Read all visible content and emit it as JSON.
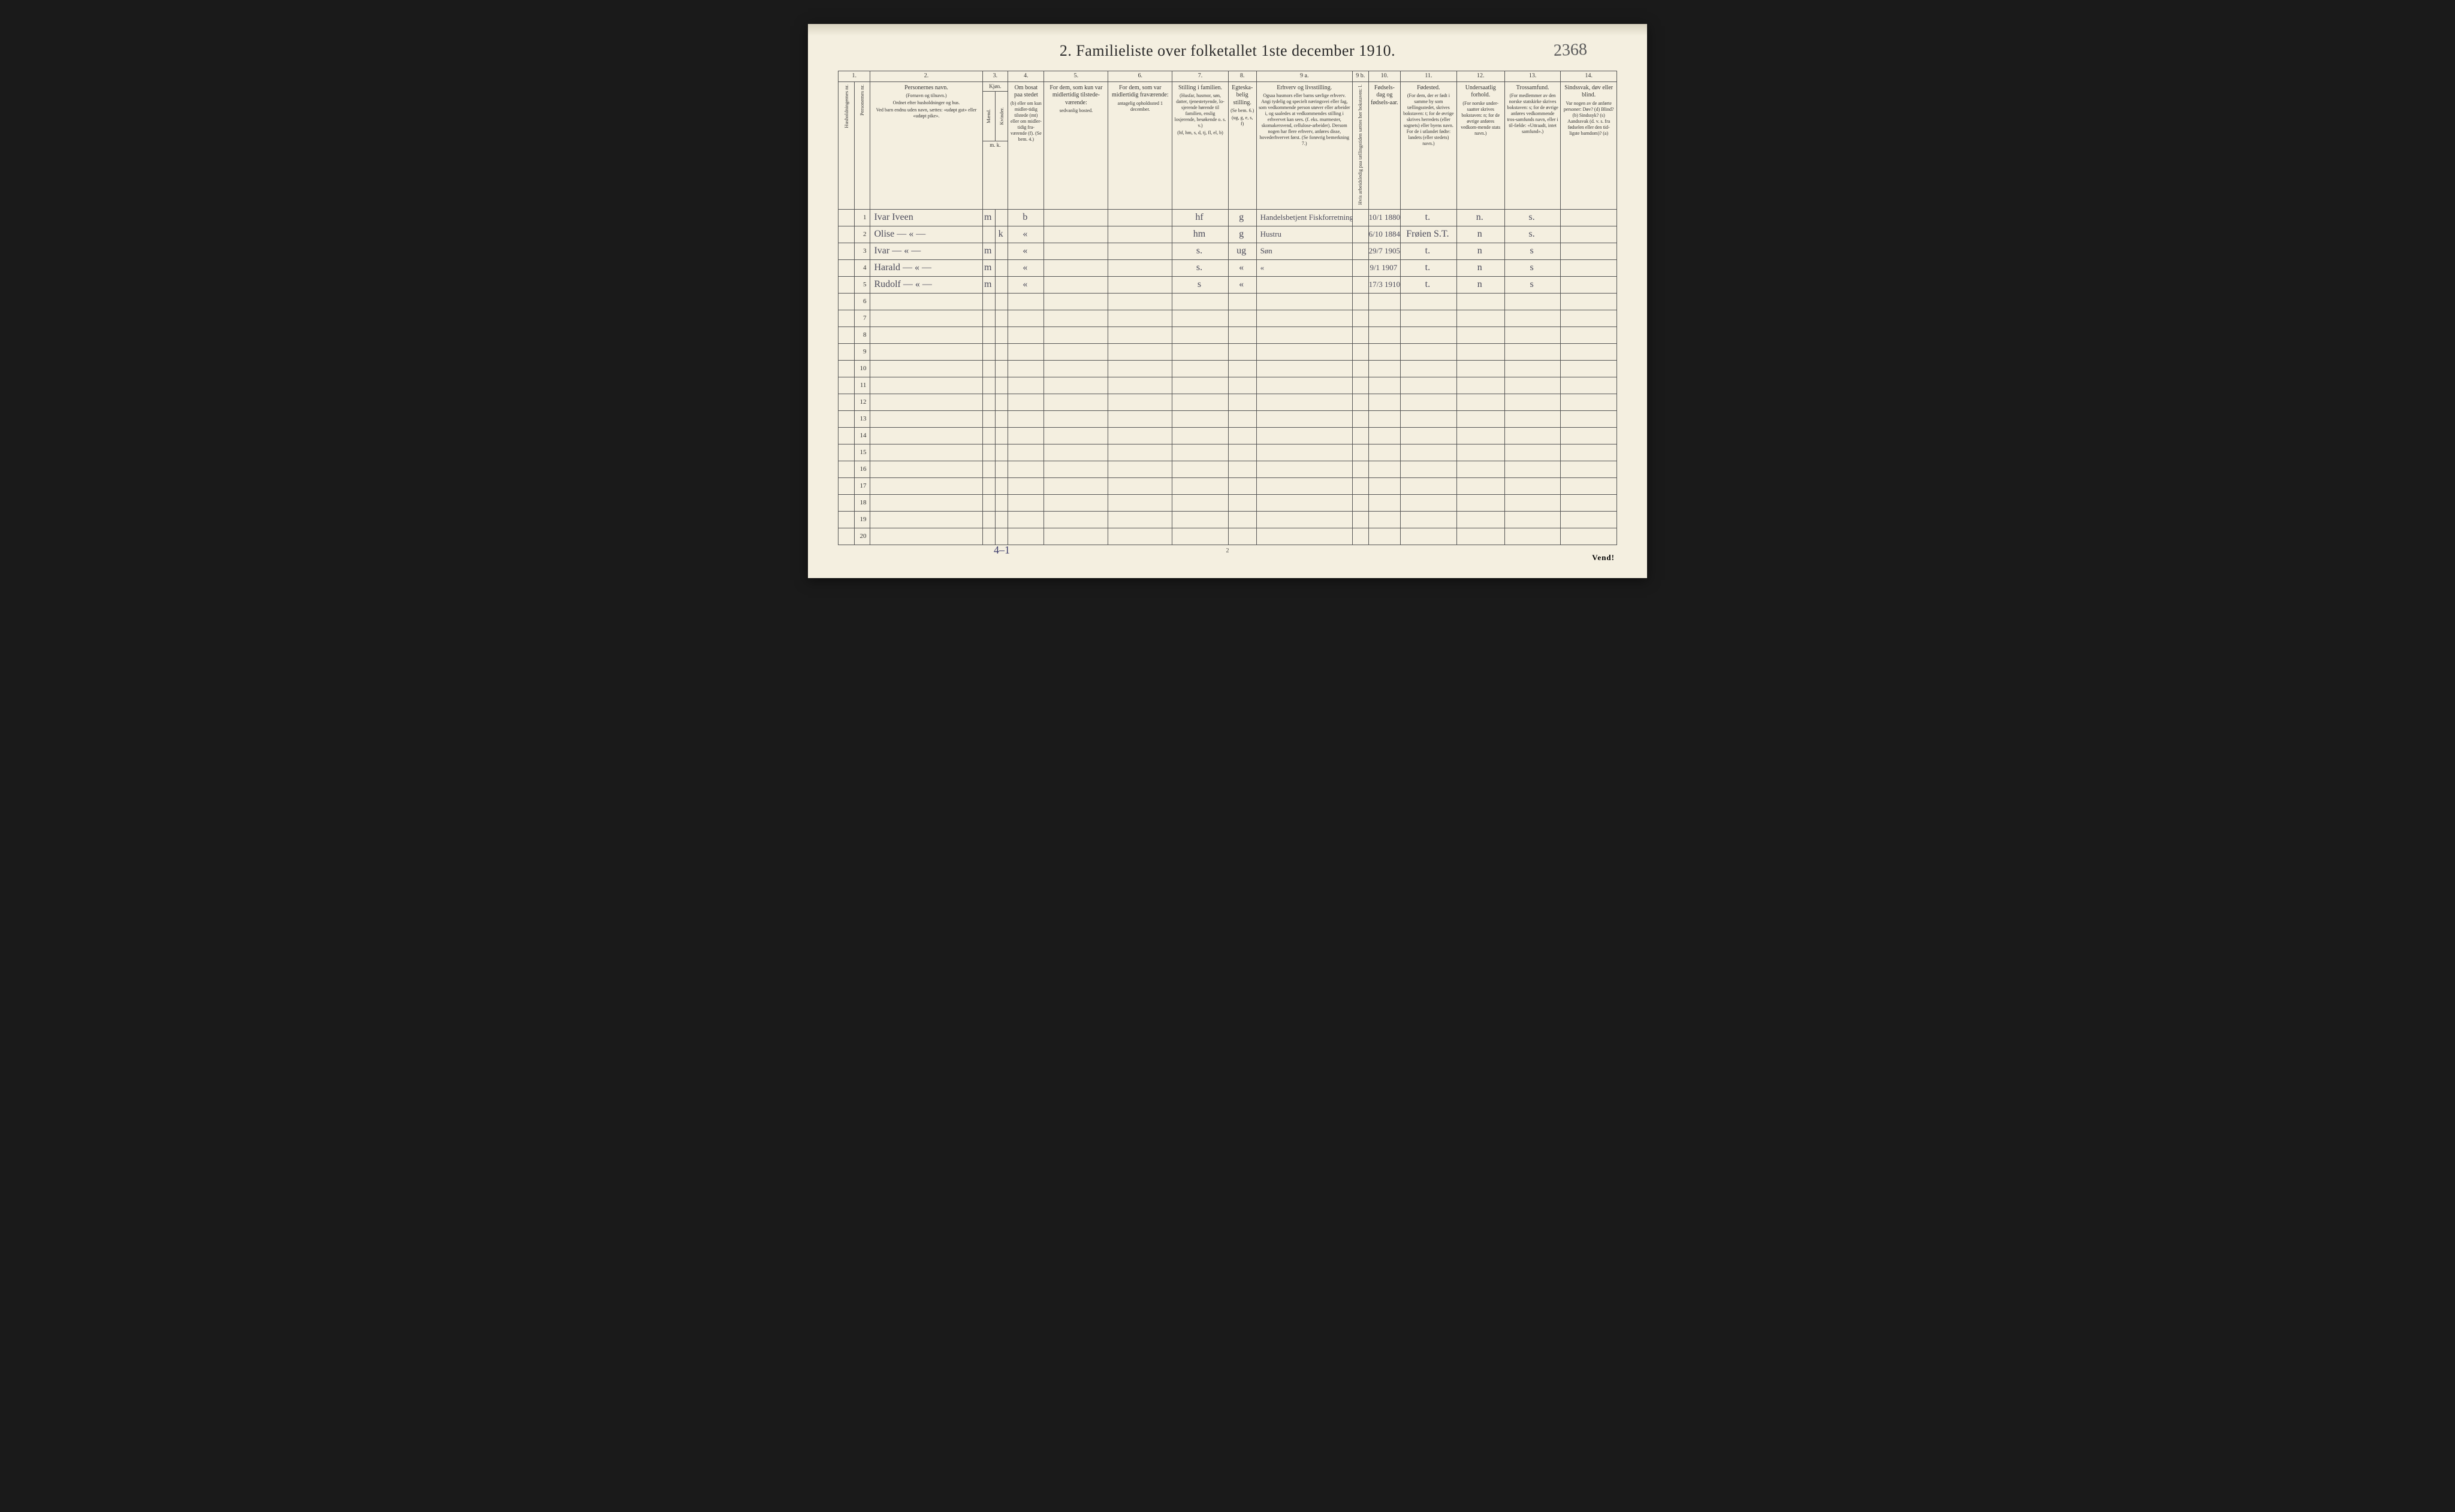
{
  "document": {
    "title": "2.  Familieliste over folketallet 1ste december 1910.",
    "topright_handwritten": "2368",
    "page_number_bottom": "2",
    "footer_right": "Vend!",
    "tally_note": "4–1",
    "background_color": "#f4efe0",
    "border_color": "#555555",
    "handwriting_color": "#4a4a5a",
    "print_color": "#2a2a2a"
  },
  "column_numbers": [
    "1.",
    "2.",
    "3.",
    "4.",
    "5.",
    "6.",
    "7.",
    "8.",
    "9 a.",
    "9 b.",
    "10.",
    "11.",
    "12.",
    "13.",
    "14."
  ],
  "headers": {
    "col1_vert": "Husholdningernes nr.",
    "col1b_vert": "Personernes nr.",
    "col2_main": "Personernes navn.",
    "col2_sub1": "(Fornavn og tilnavn.)",
    "col2_sub2": "Ordnet efter husholdninger og hus.",
    "col2_sub3": "Ved barn endnu uden navn, sættes: «udøpt gut» eller «udøpt pike».",
    "col3_main": "Kjøn.",
    "col3_m_vert": "Mænd.",
    "col3_k_vert": "Kvinder.",
    "col3_foot": "m.  k.",
    "col4_main": "Om bosat paa stedet",
    "col4_sub": "(b) eller om kun midler-tidig tilstede (mt) eller om midler-tidig fra-værende (f). (Se bem. 4.)",
    "col5_main": "For dem, som kun var midlertidig tilstede-værende:",
    "col5_sub": "sedvanlig bosted.",
    "col6_main": "For dem, som var midlertidig fraværende:",
    "col6_sub": "antagelig opholdssted 1 december.",
    "col7_main": "Stilling i familien.",
    "col7_sub": "(Husfar, husmor, søn, datter, tjenestetyende, lo-sjerende hørende til familien, enslig losjerende, besøkende o. s. v.)",
    "col7_foot": "(hf, hm, s, d, tj, fl, el, b)",
    "col8_main": "Egteska-belig stilling.",
    "col8_sub": "(Se bem. 6.)",
    "col8_foot": "(ug, g, e, s, f)",
    "col9a_main": "Erhverv og livsstilling.",
    "col9a_sub": "Ogsaa husmors eller barns særlige erhverv. Angi tydelig og specielt næringsvei eller fag, som vedkommende person utøver eller arbeider i, og saaledes at vedkommendes stilling i erhvervet kan sees. (f. eks. murmester, skomakersvend, cellulose-arbeider). Dersom nogen har flere erhverv, anføres disse, hovederhvervet først. (Se forøvrig bemerkning 7.)",
    "col9b_vert": "Hvis arbeidsledig paa tællingstiden sættes her bokstaven: l.",
    "col10_main": "Fødsels-dag og fødsels-aar.",
    "col11_main": "Fødested.",
    "col11_sub": "(For dem, der er født i samme by som tællingsstedet, skrives bokstaven: t; for de øvrige skrives herredets (eller sognets) eller byens navn. For de i utlandet fødte: landets (eller stedets) navn.)",
    "col12_main": "Undersaatlig forhold.",
    "col12_sub": "(For norske under-saatter skrives bokstaven: n; for de øvrige anføres vedkom-mende stats navn.)",
    "col13_main": "Trossamfund.",
    "col13_sub": "(For medlemmer av den norske statskirke skrives bokstaven: s; for de øvrige anføres vedkommende tros-samfunds navn, eller i til-fælde: «Uttraadt, intet samfund».)",
    "col14_main": "Sindssvak, døv eller blind.",
    "col14_sub": "Var nogen av de anførte personer: Døv? (d) Blind? (b) Sindssyk? (s) Aandssvak (d. v. s. fra fødselen eller den tid-ligste barndom)? (a)"
  },
  "rows": [
    {
      "num": "1",
      "name": "Ivar Iveen",
      "sex_m": "m",
      "sex_k": "",
      "bosat": "b",
      "stilling": "hf",
      "egt": "g",
      "erhverv": "Handelsbetjent  Fiskforretning",
      "fdato": "10/1 1880",
      "fsted": "t.",
      "under": "n.",
      "tros": "s."
    },
    {
      "num": "2",
      "name": "Olise    — « —",
      "sex_m": "",
      "sex_k": "k",
      "bosat": "«",
      "stilling": "hm",
      "egt": "g",
      "erhverv": "Hustru",
      "fdato": "6/10 1884",
      "fsted": "Frøien S.T.",
      "under": "n",
      "tros": "s."
    },
    {
      "num": "3",
      "name": "Ivar    — « —",
      "sex_m": "m",
      "sex_k": "",
      "bosat": "«",
      "stilling": "s.",
      "egt": "ug",
      "erhverv": "Søn",
      "fdato": "29/7 1905",
      "fsted": "t.",
      "under": "n",
      "tros": "s"
    },
    {
      "num": "4",
      "name": "Harald    — « —",
      "sex_m": "m",
      "sex_k": "",
      "bosat": "«",
      "stilling": "s.",
      "egt": "«",
      "erhverv": "«",
      "fdato": "9/1 1907",
      "fsted": "t.",
      "under": "n",
      "tros": "s"
    },
    {
      "num": "5",
      "name": "Rudolf    — « —",
      "sex_m": "m",
      "sex_k": "",
      "bosat": "«",
      "stilling": "s",
      "egt": "«",
      "erhverv": "",
      "fdato": "17/3 1910",
      "fsted": "t.",
      "under": "n",
      "tros": "s"
    }
  ],
  "total_rows": 20
}
